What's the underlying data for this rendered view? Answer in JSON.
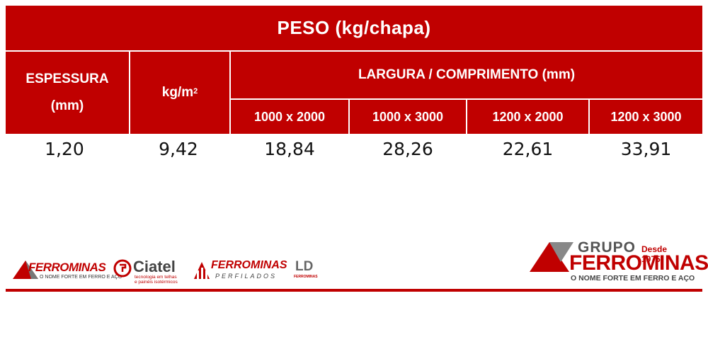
{
  "table": {
    "title": "PESO (kg/chapa)",
    "header_espessura_line1": "ESPESSURA",
    "header_espessura_line2": "(mm)",
    "header_kg": "kg/m",
    "header_kg_sup": "2",
    "header_largura": "LARGURA / COMPRIMENTO (mm)",
    "sub_headers": [
      "1000 x 2000",
      "1000 x 3000",
      "1200 x 2000",
      "1200 x 3000"
    ],
    "row": [
      "1,20",
      "9,42",
      "18,84",
      "28,26",
      "22,61",
      "33,91"
    ]
  },
  "logos": {
    "ferrominas_small": {
      "name": "FERROMINAS",
      "tagline": "O NOME FORTE EM FERRO E AÇO"
    },
    "ciatel": {
      "name": "Ciatel",
      "tagline1": "tecnologia em telhas",
      "tagline2": "e painéis isotérmicos"
    },
    "ferrominas_perfilados": {
      "name": "FERROMINAS",
      "tagline": "PERFILADOS"
    },
    "ld": {
      "name": "LD",
      "tagline": "FERROMINAS"
    },
    "grupo_ferrominas": {
      "grupo": "GRUPO",
      "since": "Desde 1975",
      "name": "FERROMINAS",
      "tagline": "O NOME FORTE EM FERRO E AÇO"
    }
  },
  "colors": {
    "brand_red": "#c00000",
    "grey": "#555555"
  }
}
